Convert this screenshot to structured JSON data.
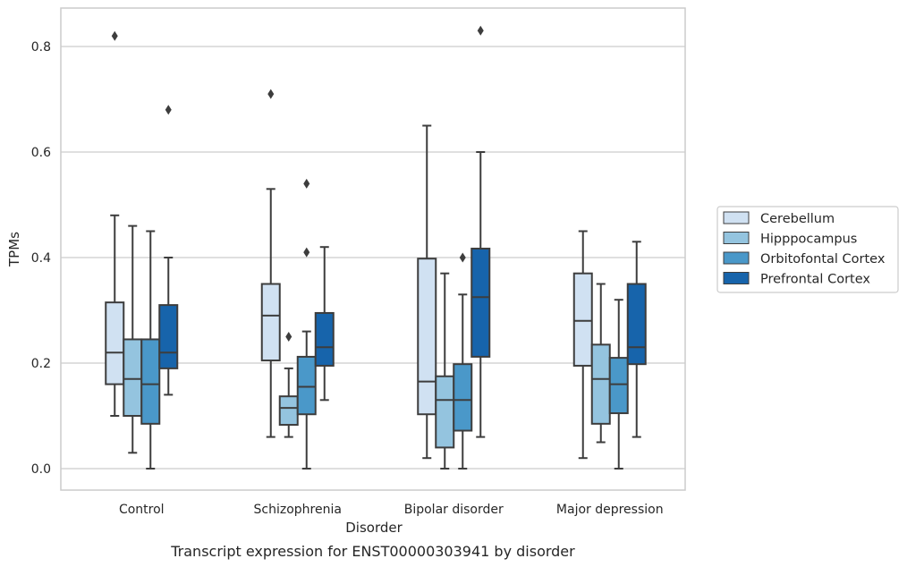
{
  "caption": "Transcript expression for ENST00000303941 by disorder",
  "chart_data": {
    "type": "box",
    "title": "",
    "xlabel": "Disorder",
    "ylabel": "TPMs",
    "ylim": [
      -0.04,
      0.875
    ],
    "yticks": [
      0.0,
      0.2,
      0.4,
      0.6,
      0.8
    ],
    "ytick_labels": [
      "0.0",
      "0.2",
      "0.4",
      "0.6",
      "0.8"
    ],
    "grid": "horizontal",
    "legend_position": "right",
    "categories": [
      "Control",
      "Schizophrenia",
      "Bipolar disorder",
      "Major depression"
    ],
    "series": [
      {
        "name": "Cerebellum",
        "color": "#d0e1f2",
        "boxes": [
          {
            "whislo": 0.1,
            "q1": 0.16,
            "med": 0.22,
            "q3": 0.315,
            "whishi": 0.48,
            "fliers": [
              0.82
            ]
          },
          {
            "whislo": 0.06,
            "q1": 0.205,
            "med": 0.29,
            "q3": 0.35,
            "whishi": 0.53,
            "fliers": [
              0.71
            ]
          },
          {
            "whislo": 0.02,
            "q1": 0.103,
            "med": 0.165,
            "q3": 0.398,
            "whishi": 0.65,
            "fliers": []
          },
          {
            "whislo": 0.02,
            "q1": 0.195,
            "med": 0.28,
            "q3": 0.37,
            "whishi": 0.45,
            "fliers": []
          }
        ]
      },
      {
        "name": "Hipppocampus",
        "color": "#94c4df",
        "boxes": [
          {
            "whislo": 0.03,
            "q1": 0.1,
            "med": 0.17,
            "q3": 0.245,
            "whishi": 0.46,
            "fliers": []
          },
          {
            "whislo": 0.06,
            "q1": 0.083,
            "med": 0.115,
            "q3": 0.137,
            "whishi": 0.19,
            "fliers": [
              0.25
            ]
          },
          {
            "whislo": 0.0,
            "q1": 0.04,
            "med": 0.13,
            "q3": 0.175,
            "whishi": 0.37,
            "fliers": []
          },
          {
            "whislo": 0.05,
            "q1": 0.085,
            "med": 0.17,
            "q3": 0.235,
            "whishi": 0.35,
            "fliers": []
          }
        ]
      },
      {
        "name": "Orbitofontal Cortex",
        "color": "#4a98c9",
        "boxes": [
          {
            "whislo": 0.0,
            "q1": 0.085,
            "med": 0.16,
            "q3": 0.245,
            "whishi": 0.45,
            "fliers": []
          },
          {
            "whislo": 0.0,
            "q1": 0.103,
            "med": 0.155,
            "q3": 0.212,
            "whishi": 0.26,
            "fliers": [
              0.41,
              0.54
            ]
          },
          {
            "whislo": 0.0,
            "q1": 0.072,
            "med": 0.13,
            "q3": 0.198,
            "whishi": 0.33,
            "fliers": [
              0.4
            ]
          },
          {
            "whislo": 0.0,
            "q1": 0.105,
            "med": 0.16,
            "q3": 0.21,
            "whishi": 0.32,
            "fliers": []
          }
        ]
      },
      {
        "name": "Prefrontal Cortex",
        "color": "#1764ab",
        "boxes": [
          {
            "whislo": 0.14,
            "q1": 0.19,
            "med": 0.22,
            "q3": 0.31,
            "whishi": 0.4,
            "fliers": [
              0.68
            ]
          },
          {
            "whislo": 0.13,
            "q1": 0.195,
            "med": 0.23,
            "q3": 0.295,
            "whishi": 0.42,
            "fliers": []
          },
          {
            "whislo": 0.06,
            "q1": 0.212,
            "med": 0.325,
            "q3": 0.417,
            "whishi": 0.6,
            "fliers": [
              0.83
            ]
          },
          {
            "whislo": 0.06,
            "q1": 0.198,
            "med": 0.23,
            "q3": 0.35,
            "whishi": 0.43,
            "fliers": []
          }
        ]
      }
    ]
  }
}
